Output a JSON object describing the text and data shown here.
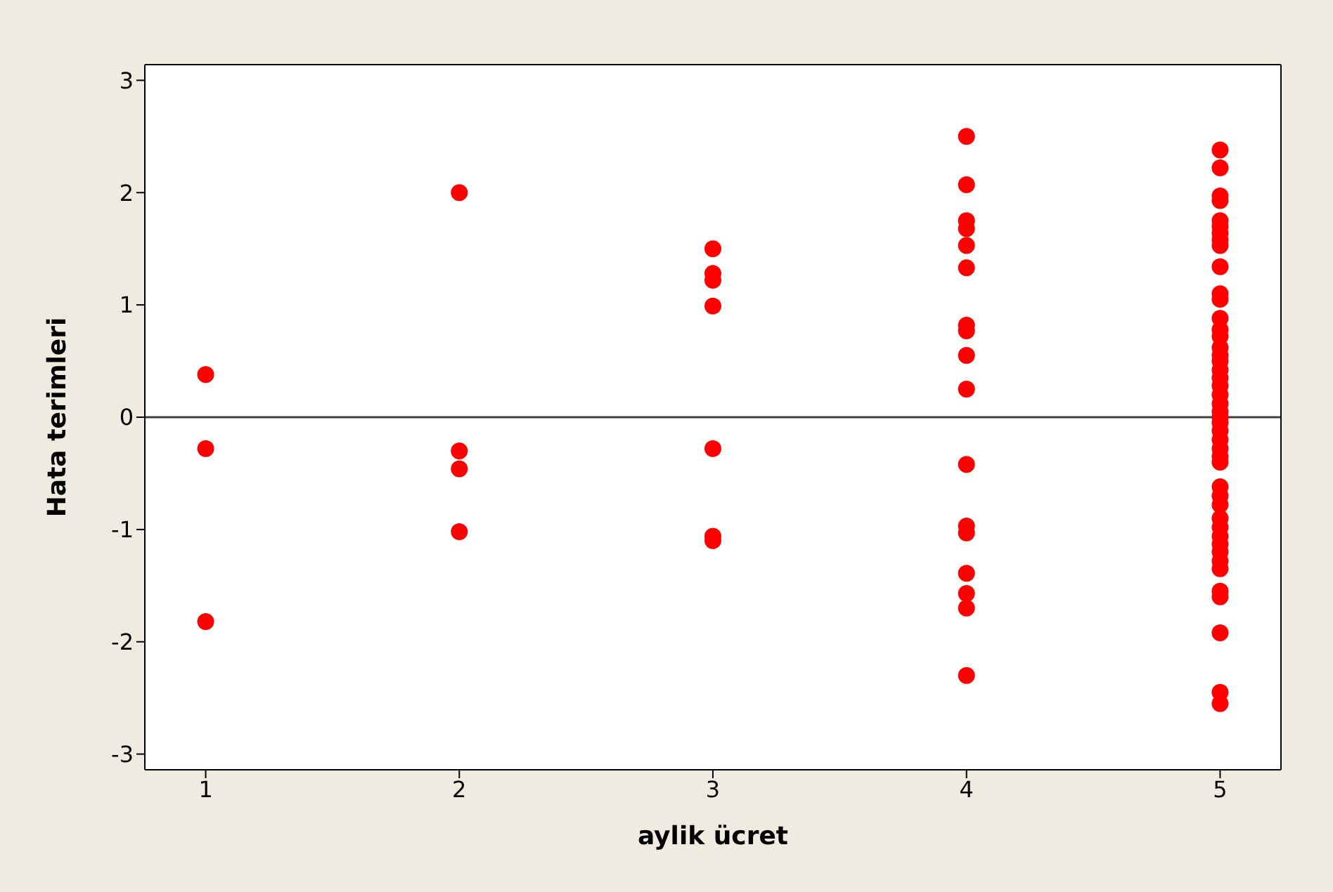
{
  "chart_data": {
    "type": "scatter",
    "xlabel": "aylik ücret",
    "ylabel": "Hata terimleri",
    "x": [
      1,
      1,
      1,
      2,
      2,
      2,
      2,
      3,
      3,
      3,
      3,
      3,
      3,
      3,
      4,
      4,
      4,
      4,
      4,
      4,
      4,
      4,
      4,
      4,
      4,
      4,
      4,
      4,
      4,
      4,
      4,
      5,
      5,
      5,
      5,
      5,
      5,
      5,
      5,
      5,
      5,
      5,
      5,
      5,
      5,
      5,
      5,
      5,
      5,
      5,
      5,
      5,
      5,
      5,
      5,
      5,
      5,
      5,
      5,
      5,
      5,
      5,
      5,
      5,
      5,
      5,
      5,
      5,
      5,
      5,
      5,
      5,
      5,
      5,
      5,
      5,
      5
    ],
    "series": [
      {
        "color": "#ff0000",
        "values": [
          0.38,
          -0.28,
          -1.82,
          2.0,
          -0.3,
          -0.46,
          -1.02,
          1.5,
          1.28,
          1.22,
          0.99,
          -0.28,
          -1.06,
          -1.1,
          2.5,
          2.07,
          1.75,
          1.68,
          1.53,
          1.33,
          0.82,
          0.77,
          0.55,
          0.25,
          -0.42,
          -0.97,
          -1.03,
          -1.39,
          -1.57,
          -1.7,
          -2.3,
          2.38,
          2.22,
          1.97,
          1.93,
          1.75,
          1.7,
          1.64,
          1.58,
          1.53,
          1.34,
          1.1,
          1.05,
          0.88,
          0.78,
          0.72,
          0.62,
          0.55,
          0.5,
          0.42,
          0.35,
          0.28,
          0.2,
          0.12,
          0.05,
          0.0,
          -0.05,
          -0.12,
          -0.2,
          -0.28,
          -0.35,
          -0.4,
          -0.62,
          -0.7,
          -0.78,
          -0.9,
          -0.98,
          -1.06,
          -1.13,
          -1.2,
          -1.28,
          -1.35,
          -1.55,
          -1.6,
          -1.92,
          -2.45,
          -2.55
        ]
      }
    ],
    "xlim": [
      0.76,
      5.24
    ],
    "xticks": [
      1,
      2,
      3,
      4,
      5
    ],
    "ylim": [
      -3.14,
      3.14
    ],
    "yticks": [
      -3,
      -2,
      -1,
      0,
      1,
      2,
      3
    ],
    "ref_lines": [
      {
        "axis": "y",
        "value": 0,
        "color": "#404040"
      }
    ],
    "grid": false,
    "marker": "circle"
  }
}
